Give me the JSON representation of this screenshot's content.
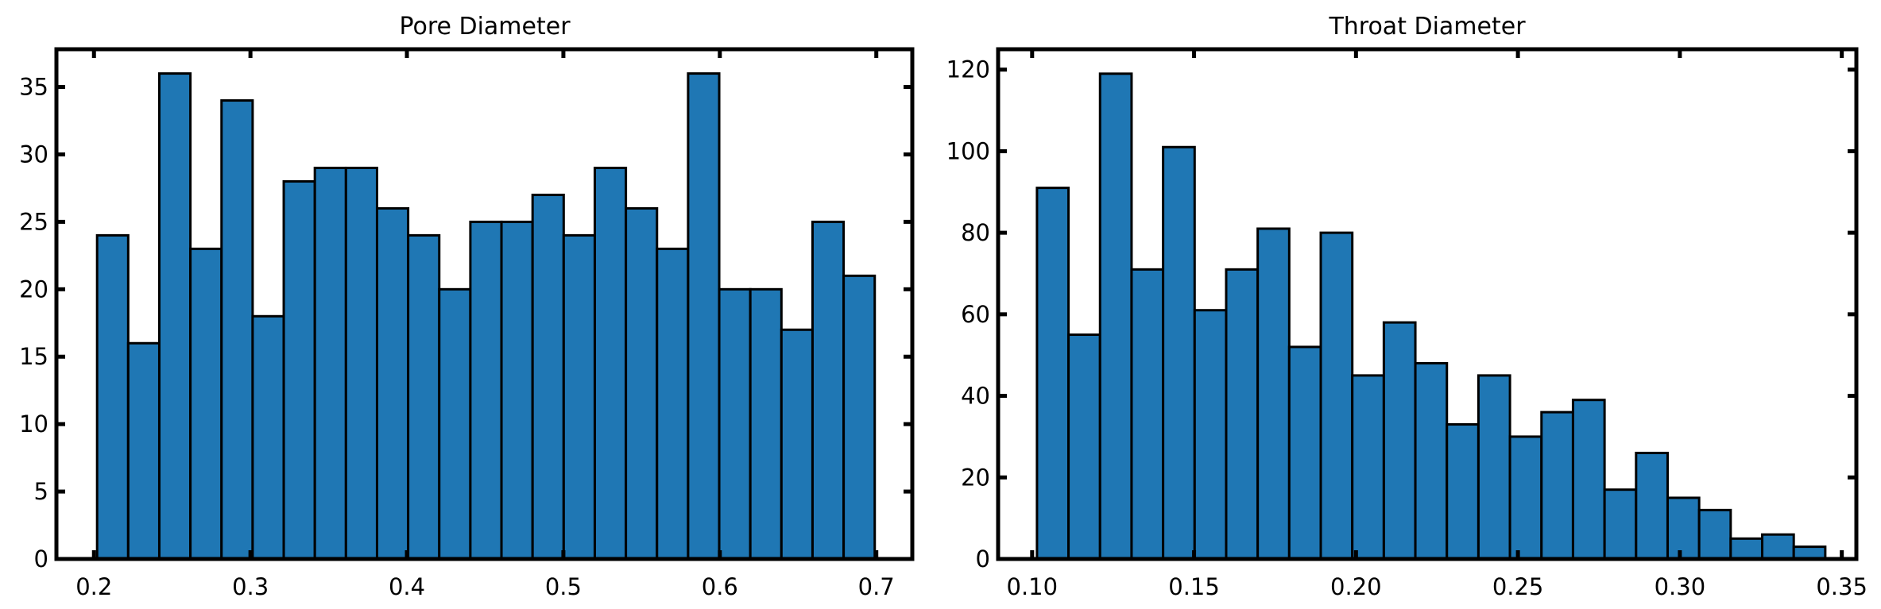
{
  "chart_data": [
    {
      "type": "bar",
      "title": "Pore Diameter",
      "xlabel": "",
      "ylabel": "",
      "xlim": [
        0.176,
        0.723
      ],
      "ylim": [
        0,
        37.8
      ],
      "xticks": [
        0.2,
        0.3,
        0.4,
        0.5,
        0.6,
        0.7
      ],
      "xtick_labels": [
        "0.2",
        "0.3",
        "0.4",
        "0.5",
        "0.6",
        "0.7"
      ],
      "yticks": [
        0,
        5,
        10,
        15,
        20,
        25,
        30,
        35
      ],
      "ytick_labels": [
        "0",
        "5",
        "10",
        "15",
        "20",
        "25",
        "30",
        "35"
      ],
      "bin_start": 0.202,
      "bin_width": 0.01988,
      "values": [
        24,
        16,
        36,
        23,
        34,
        18,
        28,
        29,
        29,
        26,
        24,
        20,
        25,
        25,
        27,
        24,
        29,
        26,
        23,
        36,
        20,
        20,
        17,
        25,
        21
      ],
      "color": "#1f77b4",
      "grid": false,
      "legend": "none"
    },
    {
      "type": "bar",
      "title": "Throat Diameter",
      "xlabel": "",
      "ylabel": "",
      "xlim": [
        0.0895,
        0.3545
      ],
      "ylim": [
        0,
        125
      ],
      "xticks": [
        0.1,
        0.15,
        0.2,
        0.25,
        0.3,
        0.35
      ],
      "xtick_labels": [
        "0.10",
        "0.15",
        "0.20",
        "0.25",
        "0.30",
        "0.35"
      ],
      "yticks": [
        0,
        20,
        40,
        60,
        80,
        100,
        120
      ],
      "ytick_labels": [
        "0",
        "20",
        "40",
        "60",
        "80",
        "100",
        "120"
      ],
      "bin_start": 0.1015,
      "bin_width": 0.009736,
      "values": [
        91,
        55,
        119,
        71,
        101,
        61,
        71,
        81,
        52,
        80,
        45,
        58,
        48,
        33,
        45,
        30,
        36,
        39,
        17,
        26,
        15,
        12,
        5,
        6,
        3
      ],
      "color": "#1f77b4",
      "grid": false,
      "legend": "none"
    }
  ]
}
